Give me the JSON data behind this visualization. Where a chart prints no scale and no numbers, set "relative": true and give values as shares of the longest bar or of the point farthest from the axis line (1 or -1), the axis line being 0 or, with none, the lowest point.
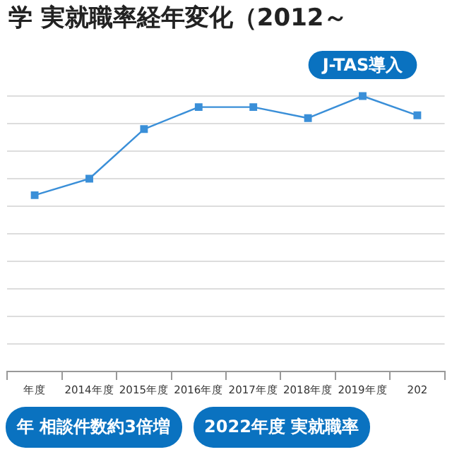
{
  "chart_data": {
    "type": "line",
    "title": "学 実就職率経年変化（2012～",
    "categories": [
      "年度",
      "2014年度",
      "2015年度",
      "2016年度",
      "2017年度",
      "2018年度",
      "2019年度",
      "202"
    ],
    "relative": true,
    "series": [
      {
        "color": "#3a8fd8",
        "values": [
          0.64,
          0.7,
          0.88,
          0.96,
          0.96,
          0.92,
          1,
          0.93
        ]
      }
    ],
    "marker": "square",
    "grid": "y",
    "legend": false,
    "annotations": [
      {
        "text": "J-TAS導入",
        "x": "2019年度",
        "y": 1
      },
      "年 相談件数約3倍増",
      "2022年度 実就職率"
    ]
  }
}
